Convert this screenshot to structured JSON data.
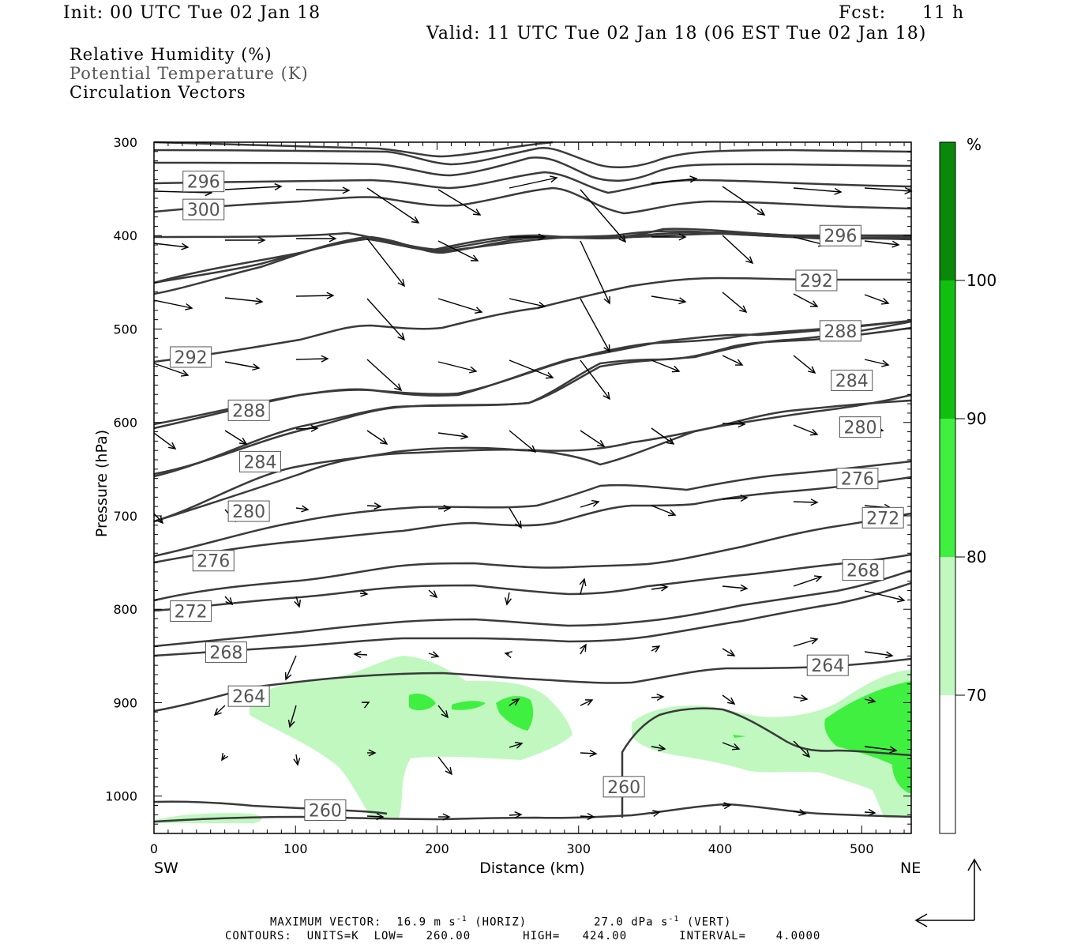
{
  "header": {
    "init": "Init: 00 UTC Tue 02 Jan 18",
    "fcst_label": "Fcst:",
    "fcst_value": "11 h",
    "valid": "Valid: 11 UTC Tue 02 Jan 18 (06 EST Tue 02 Jan 18)"
  },
  "legend": {
    "rh": "Relative Humidity (%)",
    "theta": "Potential Temperature (K)",
    "vectors": "Circulation Vectors"
  },
  "chart_data": {
    "type": "cross-section",
    "xlabel": "Distance (km)",
    "ylabel": "Pressure (hPa)",
    "xlim": [
      0,
      535
    ],
    "ylim": [
      1040,
      300
    ],
    "x_ticks": [
      "0",
      "100",
      "200",
      "300",
      "400",
      "500"
    ],
    "y_ticks": [
      "300",
      "400",
      "500",
      "600",
      "700",
      "800",
      "900",
      "1000"
    ],
    "x_end_labels": {
      "left": "SW",
      "right": "NE"
    },
    "colorbar": {
      "unit": "%",
      "levels": [
        "70",
        "80",
        "90",
        "100"
      ],
      "colors": [
        "#ffffff",
        "#c0f8c0",
        "#40f040",
        "#10c010",
        "#0a880a"
      ]
    },
    "theta_labels": [
      {
        "value": "300",
        "x": 35,
        "p": 372
      },
      {
        "value": "296",
        "x": 35,
        "p": 342
      },
      {
        "value": "292",
        "x": 26,
        "p": 530
      },
      {
        "value": "288",
        "x": 67,
        "p": 587
      },
      {
        "value": "284",
        "x": 75,
        "p": 642
      },
      {
        "value": "280",
        "x": 67,
        "p": 695
      },
      {
        "value": "276",
        "x": 42,
        "p": 748
      },
      {
        "value": "272",
        "x": 26,
        "p": 802
      },
      {
        "value": "268",
        "x": 51,
        "p": 846
      },
      {
        "value": "264",
        "x": 67,
        "p": 893
      },
      {
        "value": "260",
        "x": 121,
        "p": 1015
      },
      {
        "value": "260",
        "x": 332,
        "p": 990
      },
      {
        "value": "296",
        "x": 485,
        "p": 400
      },
      {
        "value": "292",
        "x": 468,
        "p": 448
      },
      {
        "value": "288",
        "x": 485,
        "p": 502
      },
      {
        "value": "284",
        "x": 493,
        "p": 555
      },
      {
        "value": "280",
        "x": 499,
        "p": 605
      },
      {
        "value": "276",
        "x": 497,
        "p": 660
      },
      {
        "value": "272",
        "x": 515,
        "p": 702
      },
      {
        "value": "268",
        "x": 501,
        "p": 758
      },
      {
        "value": "264",
        "x": 476,
        "p": 860
      }
    ]
  },
  "colorbar_labels": [
    "%",
    "100",
    "90",
    "80",
    "70"
  ],
  "footer": {
    "max_vector_label": "MAXIMUM VECTOR:",
    "max_vector_horiz": "16.9 m s",
    "horiz_tag": "(HORIZ)",
    "max_vector_vert": "27.0 dPa s",
    "vert_tag": "(VERT)",
    "exp": "-1",
    "contours": "CONTOURS:  UNITS=K  LOW=   260.00       HIGH=   424.00       INTERVAL=    4.0000"
  }
}
